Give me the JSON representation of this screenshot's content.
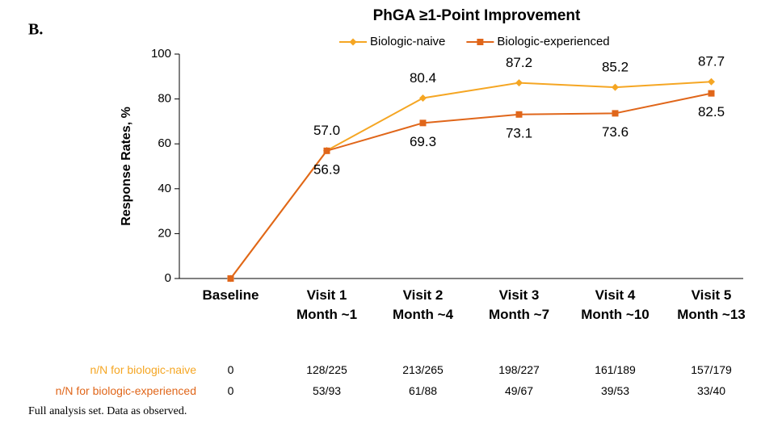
{
  "panel_label": "B.",
  "chart_data": {
    "type": "line",
    "title": "PhGA ≥1-Point Improvement",
    "y_label": "Response Rates, %",
    "categories": [
      "Baseline",
      "Visit 1\nMonth ~1",
      "Visit 2\nMonth ~4",
      "Visit 3\nMonth ~7",
      "Visit 4\nMonth ~10",
      "Visit 5\nMonth ~13"
    ],
    "series": [
      {
        "name": "Biologic-naive",
        "color": "#f5a623",
        "marker": "diamond",
        "label_side": "above",
        "values": [
          0,
          57.0,
          80.4,
          87.2,
          85.2,
          87.7
        ],
        "value_labels": [
          null,
          "57.0",
          "80.4",
          "87.2",
          "85.2",
          "87.7"
        ]
      },
      {
        "name": "Biologic-experienced",
        "color": "#e0661a",
        "marker": "square",
        "label_side": "below",
        "values": [
          0,
          56.9,
          69.3,
          73.1,
          73.6,
          82.5
        ],
        "value_labels": [
          null,
          "56.9",
          "69.3",
          "73.1",
          "73.6",
          "82.5"
        ]
      }
    ],
    "ylim": [
      0,
      100
    ],
    "yticks": [
      0,
      20,
      40,
      60,
      80,
      100
    ],
    "grid": false,
    "legend": "top"
  },
  "table": {
    "rows": [
      {
        "label": "n/N for biologic-naive",
        "cells": [
          "0",
          "128/225",
          "213/265",
          "198/227",
          "161/189",
          "157/179"
        ]
      },
      {
        "label": "n/N for biologic-experienced",
        "cells": [
          "0",
          "53/93",
          "61/88",
          "49/67",
          "39/53",
          "33/40"
        ]
      }
    ]
  },
  "footnote": "Full analysis set. Data as observed."
}
